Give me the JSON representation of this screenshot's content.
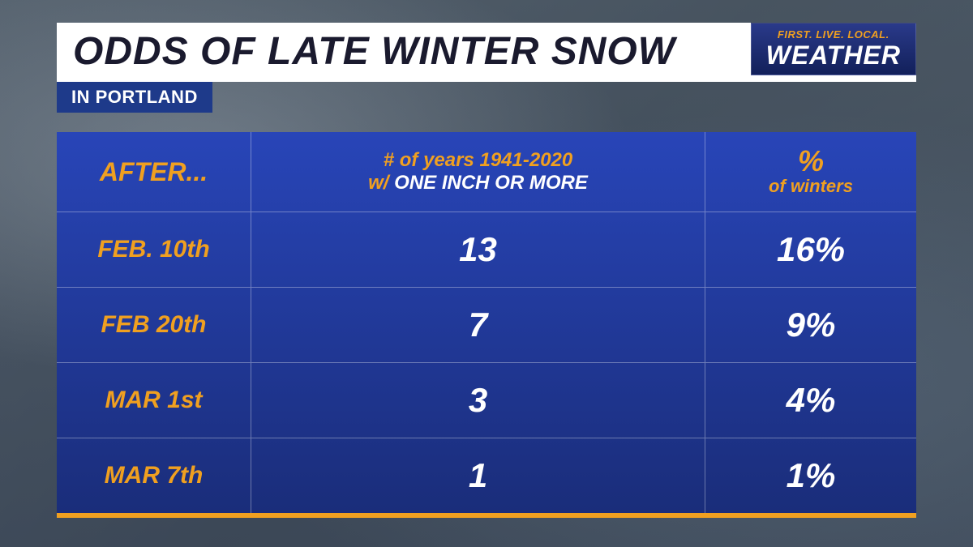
{
  "title": "ODDS OF LATE WINTER SNOW",
  "subtitle": "IN PORTLAND",
  "badge": {
    "tagline": "FIRST. LIVE. LOCAL.",
    "main": "WEATHER"
  },
  "headers": {
    "after": "AFTER...",
    "years_line1": "# of years 1941-2020",
    "years_prefix": "w/ ",
    "years_line2": "ONE INCH OR MORE",
    "pct_symbol": "%",
    "pct_label": "of winters"
  },
  "rows": [
    {
      "date": "FEB. 10th",
      "count": "13",
      "pct": "16%"
    },
    {
      "date": "FEB 20th",
      "count": "7",
      "pct": "9%"
    },
    {
      "date": "MAR 1st",
      "count": "3",
      "pct": "4%"
    },
    {
      "date": "MAR 7th",
      "count": "1",
      "pct": "1%"
    }
  ],
  "colors": {
    "accent_orange": "#f0a020",
    "table_bg_top": "#2845b8",
    "table_bg_bottom": "#1a2d7a",
    "title_bg": "#ffffff",
    "title_text": "#1a1a2e",
    "subtitle_bg": "#1e3a8a",
    "white": "#ffffff",
    "divider": "rgba(255,255,255,0.35)"
  },
  "type": "table",
  "columns": [
    "date_after",
    "years_count",
    "percent_of_winters"
  ]
}
